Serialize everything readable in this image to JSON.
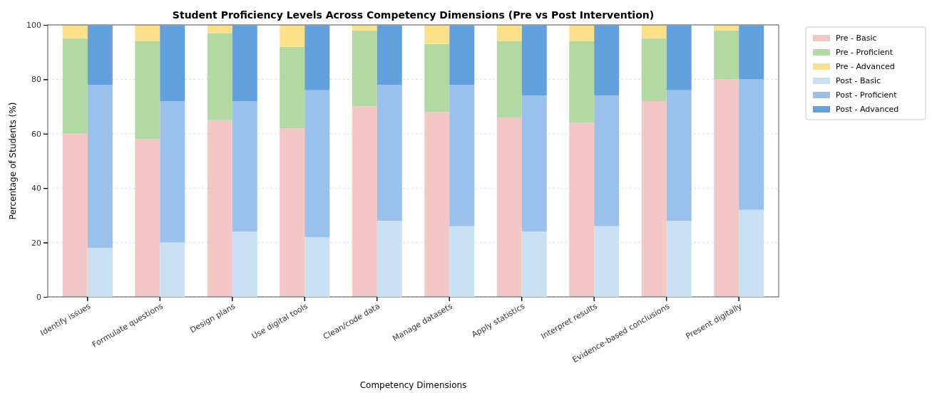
{
  "chart_data": [
    {
      "type": "bar",
      "stacked": true,
      "title": "Student Proficiency Levels Across Competency Dimensions (Pre vs Post Intervention)",
      "xlabel": "Competency Dimensions",
      "ylabel": "Percentage of Students (%)",
      "categories": [
        "Identify issues",
        "Formulate questions",
        "Design plans",
        "Use digital tools",
        "Clean/code data",
        "Manage datasets",
        "Apply statistics",
        "Interpret results",
        "Evidence-based conclusions",
        "Present digitally"
      ],
      "series": [
        {
          "name": "Pre - Basic",
          "color": "#f4c7c7",
          "values": [
            60,
            58,
            65,
            62,
            70,
            68,
            66,
            64,
            72,
            80
          ]
        },
        {
          "name": "Pre - Proficient",
          "color": "#b3d9a3",
          "values": [
            35,
            36,
            32,
            30,
            28,
            25,
            28,
            30,
            23,
            18
          ]
        },
        {
          "name": "Pre - Advanced",
          "color": "#fde08a",
          "values": [
            5,
            6,
            3,
            8,
            2,
            7,
            6,
            6,
            5,
            2
          ]
        }
      ],
      "ylim": [
        0,
        100
      ],
      "yticks": [
        0,
        20,
        40,
        60,
        80,
        100
      ],
      "grid": "y",
      "legend": "right"
    },
    {
      "type": "bar",
      "stacked": true,
      "categories": [
        null,
        null,
        null,
        null,
        null,
        null,
        null,
        null,
        null,
        null
      ],
      "series": [
        {
          "name": "Post - Basic",
          "color": "#c9e0f5",
          "values": [
            18,
            20,
            24,
            22,
            28,
            26,
            24,
            26,
            28,
            32
          ]
        },
        {
          "name": "Post - Proficient",
          "color": "#99c1eb",
          "values": [
            60,
            52,
            48,
            54,
            50,
            52,
            50,
            48,
            48,
            48
          ]
        },
        {
          "name": "Post - Advanced",
          "color": "#62a1de",
          "values": [
            22,
            28,
            28,
            24,
            22,
            22,
            26,
            26,
            24,
            20
          ]
        }
      ],
      "ylim": [
        0,
        100
      ],
      "yticks": [
        0,
        20,
        40,
        60,
        80,
        100
      ],
      "tick_labels": false,
      "legend": "right"
    }
  ]
}
